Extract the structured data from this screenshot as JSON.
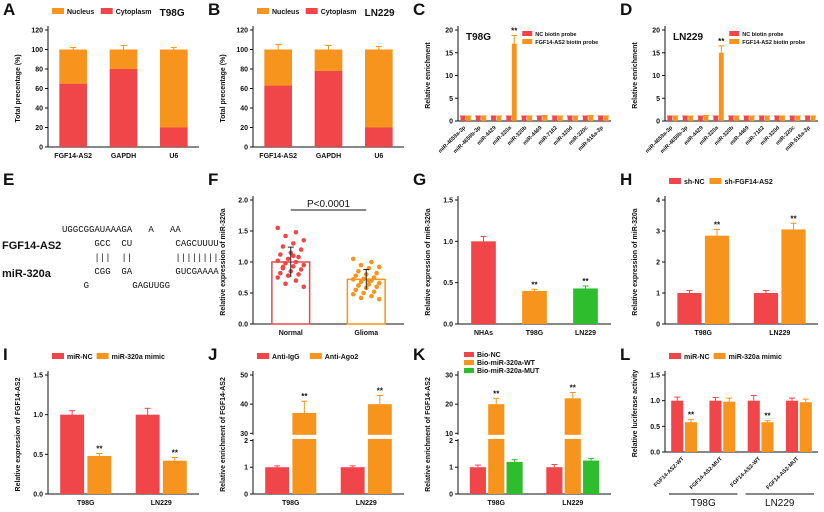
{
  "chart_data": [
    {
      "panel": "A",
      "type": "stacked_bar",
      "title": "T98G",
      "legend": "top",
      "ylabel": "Total precentage (%)",
      "categories": [
        "FGF14-AS2",
        "GAPDH",
        "U6"
      ],
      "ylim": [
        0,
        120
      ],
      "yticks": [
        0,
        20,
        40,
        60,
        80,
        100,
        120
      ],
      "series": [
        {
          "name": "Nucleus",
          "color": "#f7941d",
          "values": [
            35,
            20,
            80
          ],
          "errors": [
            2,
            4,
            2
          ]
        },
        {
          "name": "Cytoplasm",
          "color": "#f0464a",
          "values": [
            65,
            80,
            20
          ],
          "errors": [
            2,
            4,
            2
          ]
        }
      ]
    },
    {
      "panel": "B",
      "type": "stacked_bar",
      "title": "LN229",
      "legend": "top",
      "ylabel": "Total precentage (%)",
      "categories": [
        "FGF14-AS2",
        "GAPDH",
        "U6"
      ],
      "ylim": [
        0,
        120
      ],
      "yticks": [
        0,
        20,
        40,
        60,
        80,
        100,
        120
      ],
      "series": [
        {
          "name": "Nucleus",
          "color": "#f7941d",
          "values": [
            37,
            22,
            80
          ],
          "errors": [
            5,
            4,
            3
          ]
        },
        {
          "name": "Cytoplasm",
          "color": "#f0464a",
          "values": [
            63,
            78,
            20
          ],
          "errors": [
            5,
            5,
            3
          ]
        }
      ]
    },
    {
      "panel": "C",
      "type": "bar",
      "title": "T98G",
      "legend": "upper right",
      "ylabel": "Relative enrichment",
      "categories": [
        "miR-4659a-3p",
        "miR-4659b-3p",
        "miR-4429",
        "miR-320a",
        "miR-320b",
        "miR-4469",
        "miR-7162",
        "miR-320d",
        "miR-320c",
        "miR-516a-3p"
      ],
      "ylim": [
        0,
        20
      ],
      "yticks": [
        0,
        5,
        10,
        15,
        20
      ],
      "series": [
        {
          "name": "NC biotin probe",
          "color": "#f0464a",
          "values": [
            1,
            1,
            1,
            1,
            1,
            1,
            1,
            1,
            1,
            1
          ],
          "errors": [
            0.1,
            0.1,
            0.1,
            0.1,
            0.1,
            0.1,
            0.1,
            0.1,
            0.1,
            0.1
          ]
        },
        {
          "name": "FGF14-AS2 biotin probe",
          "color": "#f7941d",
          "values": [
            1,
            1,
            1,
            17,
            1,
            1.1,
            1,
            1,
            1.1,
            1
          ],
          "errors": [
            0.1,
            0.1,
            0.1,
            1.8,
            0.1,
            0.1,
            0.1,
            0.1,
            0.1,
            0.1
          ],
          "significance": [
            null,
            null,
            null,
            "**",
            null,
            null,
            null,
            null,
            null,
            null
          ]
        }
      ]
    },
    {
      "panel": "D",
      "type": "bar",
      "title": "LN229",
      "legend": "upper right",
      "ylabel": "Relative enrichment",
      "categories": [
        "miR-4659a-3p",
        "miR-4659b-3p",
        "miR-4429",
        "miR-320a",
        "miR-320b",
        "miR-4469",
        "miR-7162",
        "miR-320d",
        "miR-320c",
        "miR-516a-3p"
      ],
      "ylim": [
        0,
        20
      ],
      "yticks": [
        0,
        5,
        10,
        15,
        20
      ],
      "series": [
        {
          "name": "NC biotin probe",
          "color": "#f0464a",
          "values": [
            1,
            1,
            1,
            1,
            1,
            1,
            1,
            1,
            1,
            1
          ],
          "errors": [
            0.1,
            0.1,
            0.1,
            0.1,
            0.1,
            0.1,
            0.1,
            0.1,
            0.1,
            0.1
          ]
        },
        {
          "name": "FGF14-AS2 biotin probe",
          "color": "#f7941d",
          "values": [
            1,
            1,
            1.1,
            15,
            1,
            1,
            1,
            1,
            1,
            1
          ],
          "errors": [
            0.1,
            0.1,
            0.1,
            1.5,
            0.1,
            0.1,
            0.1,
            0.1,
            0.1,
            0.1
          ],
          "significance": [
            null,
            null,
            null,
            "**",
            null,
            null,
            null,
            null,
            null,
            null
          ]
        }
      ]
    },
    {
      "panel": "E",
      "type": "duplex",
      "labels": [
        "FGF14-AS2",
        "miR-320a"
      ],
      "rows": [
        {
          "text": "UGGCGGAUAAAGA   A   AA",
          "color": "#e8413c"
        },
        {
          "text": "      GCC  CU        CAGCUUUU",
          "color": "#4a4ad0"
        },
        {
          "text": "      |||  ||        ||||||||",
          "color": "#4a4ad0"
        },
        {
          "text": "      CGG  GA        GUCGAAAA",
          "color": "#4a4ad0"
        },
        {
          "text": "    G        GAGUUGG",
          "color": "#e8413c"
        }
      ]
    },
    {
      "panel": "F",
      "type": "dot_plot",
      "ylabel": "Relative expression of miR-320a",
      "annotation": "P<0.0001",
      "categories": [
        "Normal",
        "Glioma"
      ],
      "colors": [
        "#f0464a",
        "#f7941d"
      ],
      "means": [
        1.0,
        0.72
      ],
      "errors": [
        0.24,
        0.16
      ],
      "points": [
        [
          1.55,
          1.48,
          1.42,
          1.35,
          1.3,
          1.25,
          1.2,
          1.15,
          1.12,
          1.08,
          1.05,
          1.02,
          1.0,
          0.98,
          0.95,
          0.93,
          0.9,
          0.88,
          0.85,
          0.82,
          0.8,
          0.78,
          0.75,
          0.7,
          0.65,
          0.6,
          1.1,
          0.92
        ],
        [
          1.05,
          1.0,
          0.95,
          0.92,
          0.9,
          0.85,
          0.82,
          0.8,
          0.78,
          0.75,
          0.73,
          0.72,
          0.7,
          0.68,
          0.66,
          0.64,
          0.62,
          0.6,
          0.58,
          0.55,
          0.52,
          0.5,
          0.48,
          0.45,
          0.42,
          0.4,
          0.7,
          0.62
        ]
      ],
      "ylim": [
        0,
        2
      ],
      "yticks": [
        {
          "value": 0,
          "label": "0.0"
        },
        {
          "value": 0.5,
          "label": "0.5"
        },
        {
          "value": 1,
          "label": "1.0"
        },
        {
          "value": 1.5,
          "label": "1.5"
        },
        {
          "value": 2,
          "label": "2.0"
        }
      ]
    },
    {
      "panel": "G",
      "type": "bar",
      "ylabel": "Relative expression of miR-320a",
      "categories": [
        "NHAs",
        "T98G",
        "LN229"
      ],
      "ylim": [
        0,
        1.5
      ],
      "yticks": [
        {
          "value": 0,
          "label": "0.0"
        },
        {
          "value": 0.5,
          "label": "0.5"
        },
        {
          "value": 1,
          "label": "1.0"
        },
        {
          "value": 1.5,
          "label": "1.5"
        }
      ],
      "series": [
        {
          "colors": [
            "#f0464a",
            "#f7941d",
            "#2dbd2d"
          ],
          "values": [
            1.0,
            0.4,
            0.43
          ],
          "errors": [
            0.06,
            0.02,
            0.03
          ],
          "significance": [
            null,
            "**",
            "**"
          ]
        }
      ]
    },
    {
      "panel": "H",
      "type": "bar",
      "legend": "top",
      "ylabel": "Relative expression of miR-320a",
      "categories": [
        "T98G",
        "LN229"
      ],
      "ylim": [
        0,
        4
      ],
      "yticks": [
        0,
        1,
        2,
        3,
        4
      ],
      "series": [
        {
          "name": "sh-NC",
          "color": "#f0464a",
          "values": [
            1.0,
            1.0
          ],
          "errors": [
            0.08,
            0.08
          ]
        },
        {
          "name": "sh-FGF14-AS2",
          "color": "#f7941d",
          "values": [
            2.85,
            3.05
          ],
          "errors": [
            0.2,
            0.2
          ],
          "significance": [
            "**",
            "**"
          ]
        }
      ]
    },
    {
      "panel": "I",
      "type": "bar",
      "legend": "top",
      "ylabel": "Relative expression of FGF14-AS2",
      "categories": [
        "T98G",
        "LN229"
      ],
      "ylim": [
        0,
        1.5
      ],
      "yticks": [
        {
          "value": 0,
          "label": "0.0"
        },
        {
          "value": 0.5,
          "label": "0.5"
        },
        {
          "value": 1,
          "label": "1.0"
        },
        {
          "value": 1.5,
          "label": "1.5"
        }
      ],
      "series": [
        {
          "name": "miR-NC",
          "color": "#f0464a",
          "values": [
            1.0,
            1.0
          ],
          "errors": [
            0.05,
            0.08
          ]
        },
        {
          "name": "miR-320a mimic",
          "color": "#f7941d",
          "values": [
            0.48,
            0.42
          ],
          "errors": [
            0.03,
            0.04
          ],
          "significance": [
            "**",
            "**"
          ]
        }
      ]
    },
    {
      "panel": "J",
      "type": "bar",
      "legend": "top",
      "ylabel": "Relative enrichment of FGF14-AS2",
      "categories": [
        "T98G",
        "LN229"
      ],
      "ylim": [
        0,
        50
      ],
      "ybreak": [
        2,
        30
      ],
      "yticks": [
        0,
        1,
        2,
        30,
        40,
        50
      ],
      "series": [
        {
          "name": "Anti-IgG",
          "color": "#f0464a",
          "values": [
            1.0,
            1.0
          ],
          "errors": [
            0.05,
            0.05
          ]
        },
        {
          "name": "Anti-Ago2",
          "color": "#f7941d",
          "values": [
            37,
            40
          ],
          "errors": [
            4,
            3
          ],
          "significance": [
            "**",
            "**"
          ]
        }
      ]
    },
    {
      "panel": "K",
      "type": "bar",
      "legend": "upper left",
      "ylabel": "Relative enrichment of FGF14-AS2",
      "categories": [
        "T98G",
        "LN229"
      ],
      "ylim": [
        0,
        30
      ],
      "ybreak": [
        2,
        10
      ],
      "yticks": [
        0,
        1,
        2,
        10,
        20,
        30
      ],
      "series": [
        {
          "name": "Bio-NC",
          "color": "#f0464a",
          "values": [
            1.0,
            1.0
          ],
          "errors": [
            0.08,
            0.1
          ]
        },
        {
          "name": "Bio-miR-320a-WT",
          "color": "#f7941d",
          "values": [
            20,
            22
          ],
          "errors": [
            2,
            2
          ],
          "significance": [
            "**",
            "**"
          ]
        },
        {
          "name": "Bio-miR-320a-MUT",
          "color": "#2dbd2d",
          "values": [
            1.2,
            1.25
          ],
          "errors": [
            0.08,
            0.08
          ]
        }
      ]
    },
    {
      "panel": "L",
      "type": "bar",
      "legend": "top",
      "ylabel": "Relative luciferase activity",
      "categories": [
        "FGF14-AS2-WT",
        "FGF14-AS2-MUT",
        "FGF14-AS2-WT",
        "FGF14-AS2-MUT"
      ],
      "group_labels": [
        "T98G",
        "LN229"
      ],
      "ylim": [
        0,
        1.5
      ],
      "yticks": [
        {
          "value": 0,
          "label": "0.0"
        },
        {
          "value": 0.5,
          "label": "0.5"
        },
        {
          "value": 1,
          "label": "1.0"
        },
        {
          "value": 1.5,
          "label": "1.5"
        }
      ],
      "series": [
        {
          "name": "miR-NC",
          "color": "#f0464a",
          "values": [
            1.0,
            1.0,
            1.0,
            1.0
          ],
          "errors": [
            0.07,
            0.06,
            0.1,
            0.05
          ]
        },
        {
          "name": "miR-320a mimic",
          "color": "#f7941d",
          "values": [
            0.58,
            0.98,
            0.58,
            0.97
          ],
          "errors": [
            0.05,
            0.07,
            0.03,
            0.06
          ],
          "significance": [
            "**",
            null,
            "**",
            null
          ]
        }
      ]
    }
  ]
}
